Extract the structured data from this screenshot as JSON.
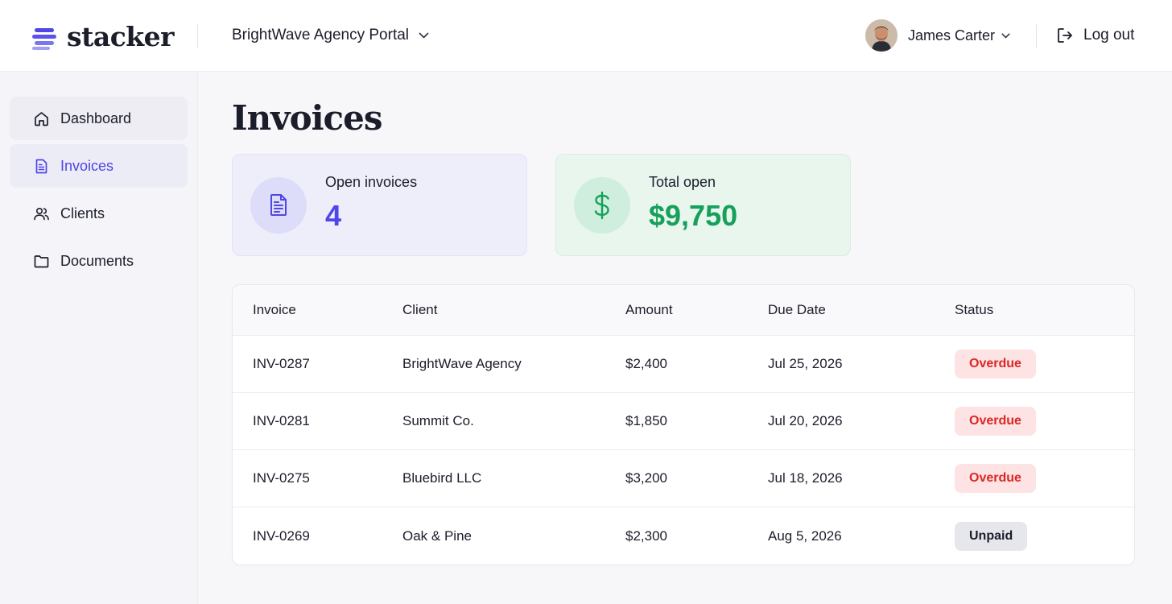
{
  "header": {
    "brand": "stacker",
    "portal": "BrightWave Agency Portal",
    "user_name": "James Carter",
    "logout_label": "Log out"
  },
  "sidebar": {
    "items": [
      {
        "label": "Dashboard",
        "icon": "home-icon"
      },
      {
        "label": "Invoices",
        "icon": "document-icon",
        "active": true
      },
      {
        "label": "Clients",
        "icon": "users-icon"
      },
      {
        "label": "Documents",
        "icon": "folder-icon"
      }
    ]
  },
  "main": {
    "title": "Invoices",
    "stats": [
      {
        "label": "Open invoices",
        "value": "4",
        "icon": "document-icon",
        "color": "#4f46e5"
      },
      {
        "label": "Total open",
        "value": "$9,750",
        "icon": "dollar-icon",
        "color": "#16a05a"
      }
    ],
    "table": {
      "columns": [
        "Invoice",
        "Client",
        "Amount",
        "Due Date",
        "Status"
      ],
      "rows": [
        {
          "invoice": "INV-0287",
          "client": "BrightWave Agency",
          "amount": "$2,400",
          "due": "Jul 25, 2026",
          "status": "Overdue"
        },
        {
          "invoice": "INV-0281",
          "client": "Summit Co.",
          "amount": "$1,850",
          "due": "Jul 20, 2026",
          "status": "Overdue"
        },
        {
          "invoice": "INV-0275",
          "client": "Bluebird LLC",
          "amount": "$3,200",
          "due": "Jul 18, 2026",
          "status": "Overdue"
        },
        {
          "invoice": "INV-0269",
          "client": "Oak & Pine",
          "amount": "$2,300",
          "due": "Aug 5, 2026",
          "status": "Unpaid"
        }
      ]
    }
  },
  "colors": {
    "accent": "#4f46e5",
    "success": "#16a05a",
    "danger": "#dc2626"
  }
}
